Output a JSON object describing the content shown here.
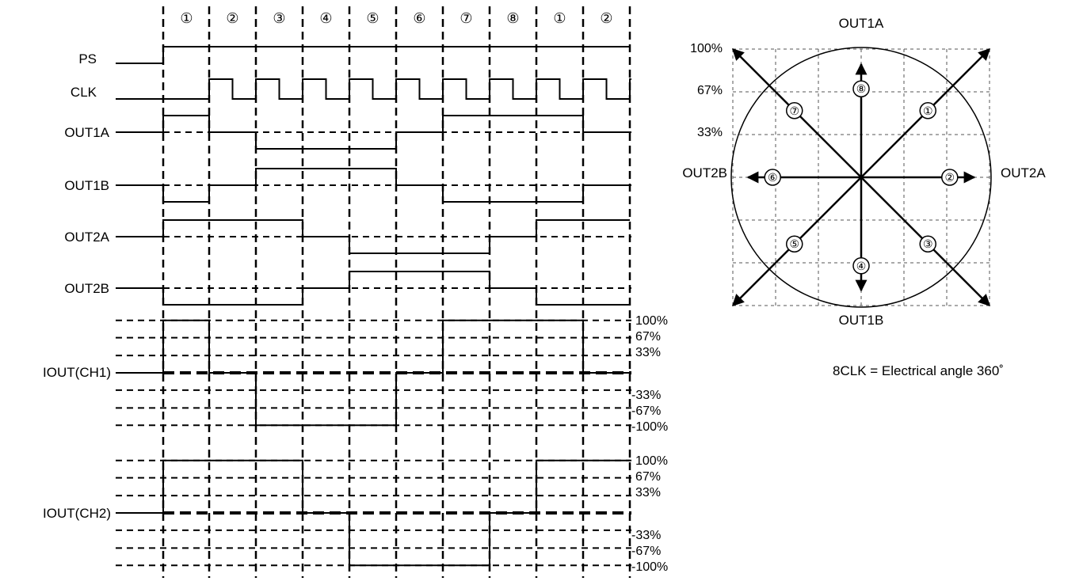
{
  "step_labels": [
    "①",
    "②",
    "③",
    "④",
    "⑤",
    "⑥",
    "⑦",
    "⑧",
    "①",
    "②"
  ],
  "signal_labels": {
    "ps": "PS",
    "clk": "CLK",
    "out1a": "OUT1A",
    "out1b": "OUT1B",
    "out2a": "OUT2A",
    "out2b": "OUT2B",
    "iout_ch1": "IOUT(CH1)",
    "iout_ch2": "IOUT(CH2)"
  },
  "current_levels": {
    "positive": [
      "100%",
      "67%",
      "33%"
    ],
    "negative": [
      "-33%",
      "-67%",
      "-100%"
    ]
  },
  "waveforms": {
    "ps": [
      0,
      1,
      1,
      1,
      1,
      1,
      1,
      1,
      1,
      1,
      1
    ],
    "out1a": [
      0,
      1,
      0,
      -1,
      -1,
      -1,
      0,
      1,
      1,
      1,
      0
    ],
    "out1b": [
      0,
      -1,
      0,
      1,
      1,
      1,
      0,
      -1,
      -1,
      -1,
      0
    ],
    "out2a": [
      0,
      1,
      1,
      1,
      0,
      -1,
      -1,
      -1,
      0,
      1,
      1
    ],
    "out2b": [
      0,
      -1,
      -1,
      -1,
      0,
      1,
      1,
      1,
      0,
      -1,
      -1
    ],
    "iout_ch1_percent": [
      0,
      100,
      0,
      -100,
      -100,
      -100,
      0,
      100,
      100,
      100,
      0
    ],
    "iout_ch2_percent": [
      0,
      100,
      100,
      100,
      0,
      -100,
      -100,
      -100,
      0,
      100,
      100
    ]
  },
  "phase_diagram": {
    "axis_labels": {
      "top": "OUT1A",
      "bottom": "OUT1B",
      "left": "OUT2B",
      "right": "OUT2A"
    },
    "percent_labels": [
      "100%",
      "67%",
      "33%"
    ],
    "vectors": [
      {
        "label": "①",
        "angle_deg": 45
      },
      {
        "label": "②",
        "angle_deg": 0
      },
      {
        "label": "③",
        "angle_deg": -45
      },
      {
        "label": "④",
        "angle_deg": -90
      },
      {
        "label": "⑤",
        "angle_deg": -135
      },
      {
        "label": "⑥",
        "angle_deg": 180
      },
      {
        "label": "⑦",
        "angle_deg": 135
      },
      {
        "label": "⑧",
        "angle_deg": 90
      }
    ]
  },
  "note": "8CLK = Electrical angle 360˚"
}
